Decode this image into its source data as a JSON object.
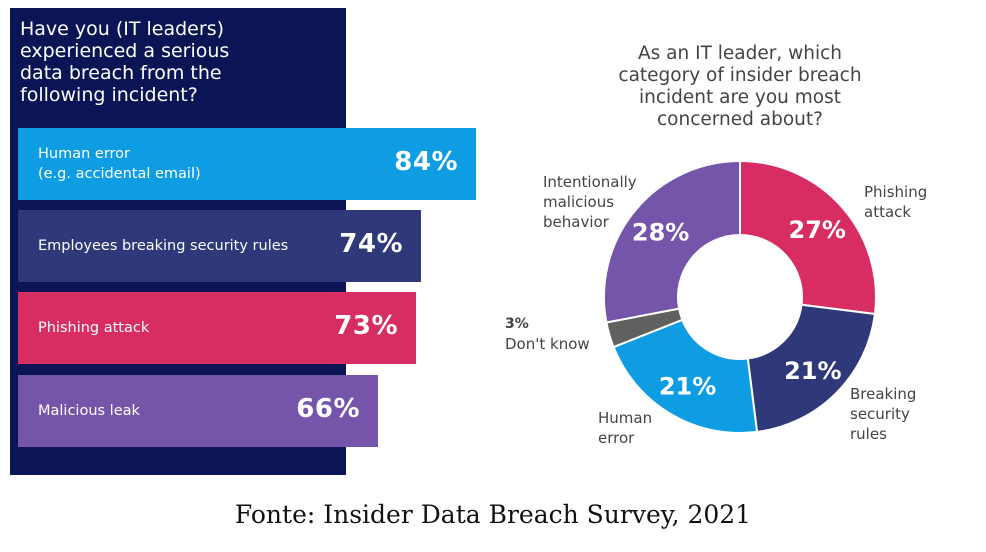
{
  "colors": {
    "panel": "#0b1454",
    "human_error": "#0e9de3",
    "breaking_rules": "#2f3878",
    "phishing": "#d82d62",
    "malicious": "#7455aa",
    "dont_know": "#606060"
  },
  "chart_data": [
    {
      "type": "bar",
      "title": "Have you (IT leaders)\nexperienced a serious\ndata breach from the\nfollowing incident?",
      "categories": [
        "Human error\n(e.g. accidental email)",
        "Employees breaking security rules",
        "Phishing attack",
        "Malicious leak"
      ],
      "values": [
        84,
        74,
        73,
        66
      ],
      "value_labels": [
        "84%",
        "74%",
        "73%",
        "66%"
      ],
      "xlim": [
        0,
        100
      ]
    },
    {
      "type": "pie",
      "donut": true,
      "title": "As an IT leader, which\ncategory of insider breach\nincident are you most\nconcerned about?",
      "slices": [
        {
          "label": "Phishing\nattack",
          "value": 27,
          "value_label": "27%"
        },
        {
          "label": "Breaking\nsecurity\nrules",
          "value": 21,
          "value_label": "21%"
        },
        {
          "label": "Human\nerror",
          "value": 21,
          "value_label": "21%"
        },
        {
          "label": "Don't know",
          "value": 3,
          "value_label": "3%"
        },
        {
          "label": "Intentionally\nmalicious\nbehavior",
          "value": 28,
          "value_label": "28%"
        }
      ]
    }
  ],
  "caption": "Fonte: Insider Data Breach Survey, 2021"
}
